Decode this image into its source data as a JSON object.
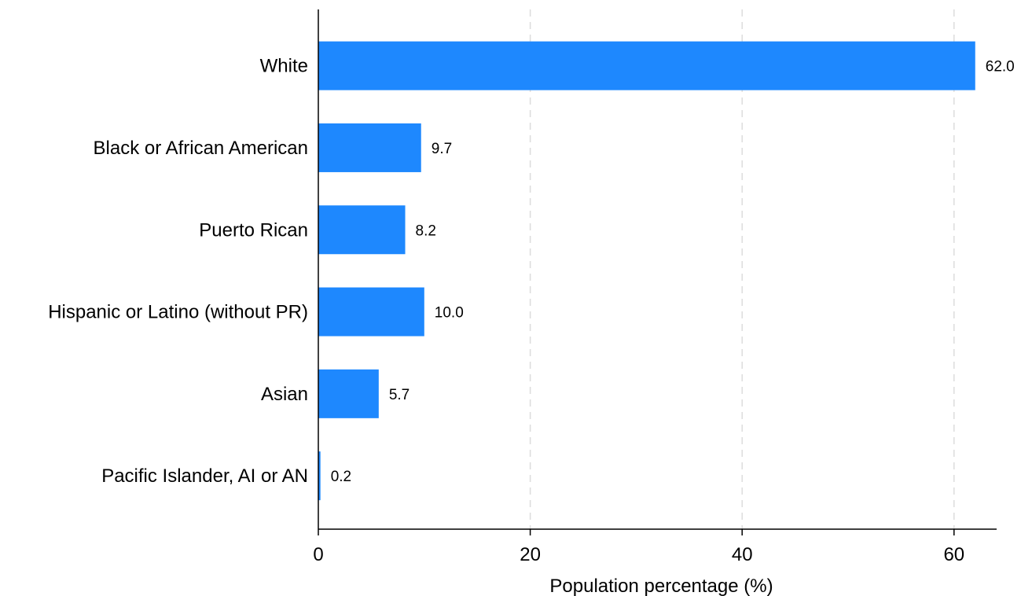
{
  "chart_data": {
    "type": "bar",
    "orientation": "horizontal",
    "categories": [
      "White",
      "Black or African American",
      "Puerto Rican",
      "Hispanic or Latino (without PR)",
      "Asian",
      "Pacific Islander, AI or AN"
    ],
    "values": [
      62.0,
      9.7,
      8.2,
      10.0,
      5.7,
      0.2
    ],
    "data_labels": [
      "62.0",
      "9.7",
      "8.2",
      "10.0",
      "5.7",
      "0.2"
    ],
    "xlabel": "Population percentage (%)",
    "ylabel": "",
    "xlim": [
      0,
      64
    ],
    "xticks": [
      0,
      20,
      40,
      60
    ],
    "xtick_labels": [
      "0",
      "20",
      "40",
      "60"
    ],
    "grid": "vertical dashed",
    "bar_color": "#1e88fe",
    "grid_color": "#dcdcdc"
  }
}
